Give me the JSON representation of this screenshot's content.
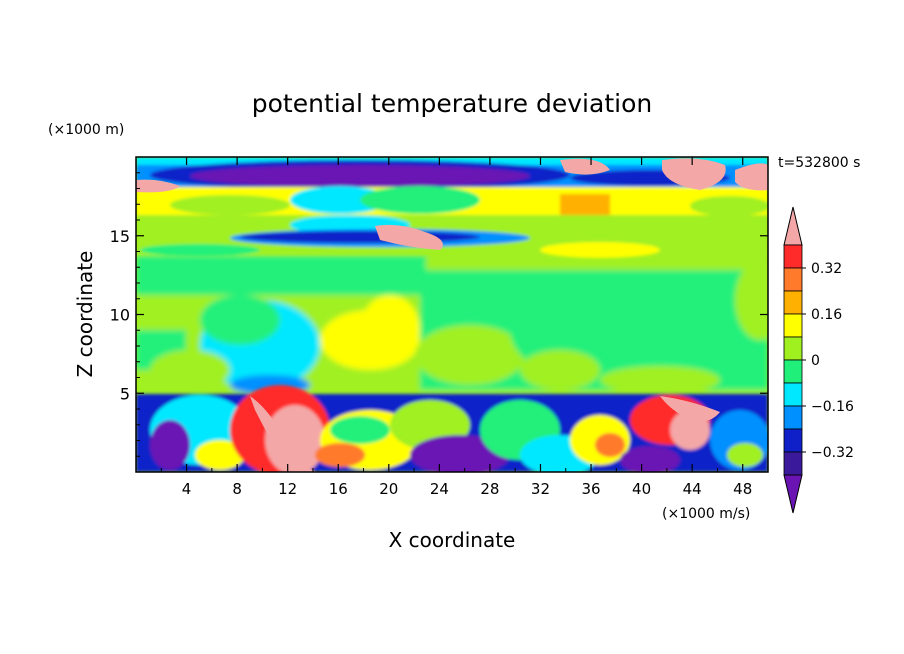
{
  "chart_data": {
    "type": "heatmap",
    "title": "potential temperature deviation",
    "xlabel": "X coordinate",
    "ylabel": "Z coordinate",
    "x_unit": "(×1000 m/s)",
    "y_unit": "(×1000 m)",
    "time_label": "t=532800 s",
    "xlim": [
      0,
      50
    ],
    "ylim": [
      0,
      20
    ],
    "x_ticks": [
      "4",
      "8",
      "12",
      "16",
      "20",
      "24",
      "28",
      "32",
      "36",
      "40",
      "44",
      "48"
    ],
    "y_ticks": [
      "5",
      "10",
      "15"
    ],
    "colorbar": {
      "labels": [
        "0.32",
        "0.16",
        "0",
        "−0.16",
        "−0.32"
      ],
      "colors": [
        "#f4a7a7",
        "#ff2a2a",
        "#ff7a2a",
        "#ffb000",
        "#ffff00",
        "#a0f020",
        "#20f07a",
        "#00e8ff",
        "#0090ff",
        "#1020c8",
        "#3a1a9a",
        "#6a14b4"
      ]
    }
  }
}
